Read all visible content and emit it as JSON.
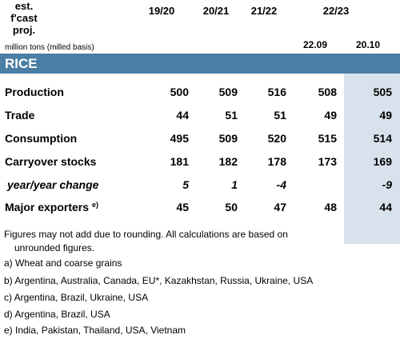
{
  "header": {
    "col1": "19/20",
    "col2": "20/21",
    "col2_sub": "est.",
    "col3": "21/22",
    "col3_sub": "f'cast",
    "col4": "22/23",
    "col4_sub": "proj.",
    "col4a": "22.09",
    "col4b": "20.10",
    "units": "million tons (milled basis)"
  },
  "section": "RICE",
  "rows": [
    {
      "label": "Production",
      "values": [
        "500",
        "509",
        "516",
        "508",
        "505"
      ]
    },
    {
      "label": "Trade",
      "values": [
        "44",
        "51",
        "51",
        "49",
        "49"
      ]
    },
    {
      "label": "Consumption",
      "values": [
        "495",
        "509",
        "520",
        "515",
        "514"
      ]
    },
    {
      "label": "Carryover stocks",
      "values": [
        "181",
        "182",
        "178",
        "173",
        "169"
      ]
    },
    {
      "label": "year/year change",
      "values": [
        "5",
        "1",
        "-4",
        "",
        "-9"
      ]
    },
    {
      "label": "Major exporters",
      "label_sup": "e)",
      "values": [
        "45",
        "50",
        "47",
        "48",
        "44"
      ]
    }
  ],
  "footnotes": [
    "Figures may not add due to rounding. All calculations are based on",
    "unrounded figures.",
    "a) Wheat and coarse grains",
    "b) Argentina, Australia, Canada, EU*, Kazakhstan, Russia, Ukraine, USA",
    "c) Argentina, Brazil, Ukraine, USA",
    "d) Argentina, Brazil, USA",
    "e) India, Pakistan, Thailand, USA, Vietnam"
  ],
  "colors": {
    "band": "#4a7ea4",
    "shade": "#d8e2ec"
  }
}
